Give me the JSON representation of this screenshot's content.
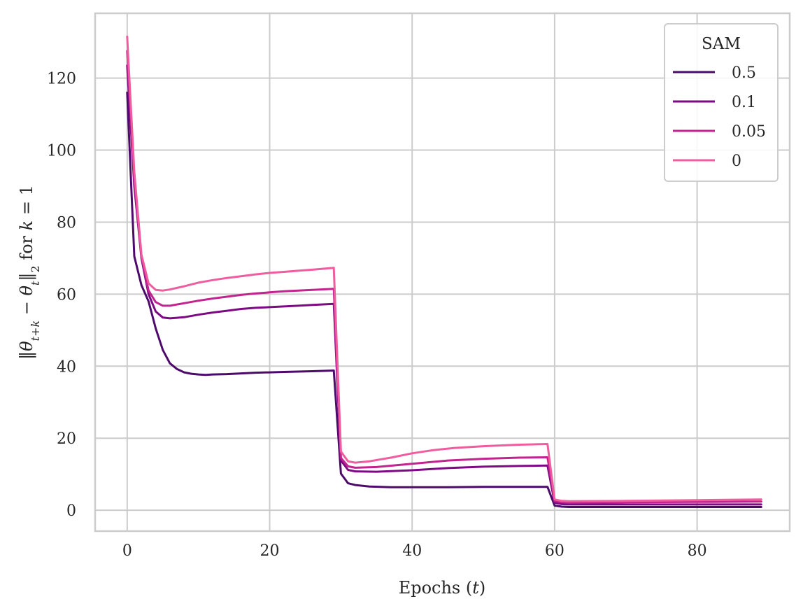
{
  "chart_data": {
    "type": "line",
    "xlabel": "Epochs (t)",
    "ylabel": "‖θt+k − θt‖2 for k = 1",
    "xlim": [
      -4.5,
      93
    ],
    "ylim": [
      -5.8,
      138
    ],
    "x_ticks": [
      0,
      20,
      40,
      60,
      80
    ],
    "y_ticks": [
      0,
      20,
      40,
      60,
      80,
      100,
      120
    ],
    "x_tick_labels": [
      "0",
      "20",
      "40",
      "60",
      "80"
    ],
    "y_tick_labels": [
      "0",
      "20",
      "40",
      "60",
      "80",
      "100",
      "120"
    ],
    "grid": true,
    "legend": {
      "title": "SAM",
      "position": "top-right"
    },
    "series": [
      {
        "name": "0.5",
        "color": "#4d0a6b",
        "points": [
          [
            0,
            116
          ],
          [
            1,
            70.5
          ],
          [
            2,
            62.5
          ],
          [
            3,
            58
          ],
          [
            4,
            50.5
          ],
          [
            5,
            44.5
          ],
          [
            6,
            40.8
          ],
          [
            7,
            39.2
          ],
          [
            8,
            38.3
          ],
          [
            9,
            37.9
          ],
          [
            10,
            37.7
          ],
          [
            11,
            37.6
          ],
          [
            12,
            37.7
          ],
          [
            14,
            37.8
          ],
          [
            16,
            38.0
          ],
          [
            18,
            38.2
          ],
          [
            20,
            38.3
          ],
          [
            22,
            38.4
          ],
          [
            24,
            38.5
          ],
          [
            26,
            38.6
          ],
          [
            29,
            38.8
          ],
          [
            30,
            10.2
          ],
          [
            31,
            7.5
          ],
          [
            32,
            7.0
          ],
          [
            34,
            6.6
          ],
          [
            37,
            6.4
          ],
          [
            40,
            6.4
          ],
          [
            45,
            6.4
          ],
          [
            50,
            6.5
          ],
          [
            55,
            6.5
          ],
          [
            59,
            6.5
          ],
          [
            60,
            1.3
          ],
          [
            61,
            1.0
          ],
          [
            62,
            0.9
          ],
          [
            70,
            0.9
          ],
          [
            80,
            0.9
          ],
          [
            89,
            0.9
          ]
        ]
      },
      {
        "name": "0.1",
        "color": "#7d0a84",
        "points": [
          [
            0,
            123.5
          ],
          [
            1,
            90
          ],
          [
            2,
            70
          ],
          [
            3,
            60
          ],
          [
            4,
            55.2
          ],
          [
            5,
            53.5
          ],
          [
            6,
            53.3
          ],
          [
            8,
            53.6
          ],
          [
            10,
            54.3
          ],
          [
            12,
            54.9
          ],
          [
            14,
            55.4
          ],
          [
            16,
            55.9
          ],
          [
            18,
            56.2
          ],
          [
            20,
            56.4
          ],
          [
            22,
            56.6
          ],
          [
            24,
            56.8
          ],
          [
            26,
            57.0
          ],
          [
            29,
            57.3
          ],
          [
            30,
            13.8
          ],
          [
            31,
            11.2
          ],
          [
            32,
            10.8
          ],
          [
            35,
            10.7
          ],
          [
            40,
            11.1
          ],
          [
            45,
            11.7
          ],
          [
            50,
            12.1
          ],
          [
            55,
            12.3
          ],
          [
            59,
            12.4
          ],
          [
            60,
            2.1
          ],
          [
            61,
            1.7
          ],
          [
            62,
            1.6
          ],
          [
            70,
            1.6
          ],
          [
            80,
            1.6
          ],
          [
            89,
            1.6
          ]
        ]
      },
      {
        "name": "0.05",
        "color": "#c2238e",
        "points": [
          [
            0,
            127.5
          ],
          [
            1,
            92
          ],
          [
            2,
            70.5
          ],
          [
            3,
            61
          ],
          [
            4,
            57.8
          ],
          [
            5,
            56.8
          ],
          [
            6,
            56.8
          ],
          [
            8,
            57.5
          ],
          [
            10,
            58.2
          ],
          [
            12,
            58.8
          ],
          [
            14,
            59.3
          ],
          [
            16,
            59.8
          ],
          [
            18,
            60.2
          ],
          [
            20,
            60.5
          ],
          [
            22,
            60.8
          ],
          [
            24,
            61.0
          ],
          [
            26,
            61.2
          ],
          [
            29,
            61.5
          ],
          [
            30,
            14.5
          ],
          [
            31,
            12.2
          ],
          [
            32,
            11.8
          ],
          [
            35,
            12.0
          ],
          [
            40,
            12.9
          ],
          [
            45,
            13.8
          ],
          [
            50,
            14.3
          ],
          [
            55,
            14.6
          ],
          [
            59,
            14.7
          ],
          [
            60,
            2.6
          ],
          [
            61,
            2.2
          ],
          [
            62,
            2.1
          ],
          [
            70,
            2.2
          ],
          [
            80,
            2.3
          ],
          [
            89,
            2.4
          ]
        ]
      },
      {
        "name": "0",
        "color": "#ef5d9e",
        "points": [
          [
            0,
            131.5
          ],
          [
            1,
            94
          ],
          [
            2,
            71
          ],
          [
            3,
            63
          ],
          [
            4,
            61.2
          ],
          [
            5,
            61.0
          ],
          [
            6,
            61.3
          ],
          [
            8,
            62.2
          ],
          [
            10,
            63.2
          ],
          [
            12,
            63.9
          ],
          [
            14,
            64.5
          ],
          [
            16,
            65.0
          ],
          [
            18,
            65.5
          ],
          [
            20,
            65.9
          ],
          [
            22,
            66.2
          ],
          [
            24,
            66.5
          ],
          [
            26,
            66.8
          ],
          [
            29,
            67.3
          ],
          [
            30,
            16.3
          ],
          [
            31,
            13.6
          ],
          [
            32,
            13.2
          ],
          [
            34,
            13.6
          ],
          [
            37,
            14.6
          ],
          [
            40,
            15.8
          ],
          [
            43,
            16.7
          ],
          [
            46,
            17.3
          ],
          [
            50,
            17.8
          ],
          [
            55,
            18.2
          ],
          [
            59,
            18.4
          ],
          [
            60,
            3.0
          ],
          [
            61,
            2.6
          ],
          [
            62,
            2.5
          ],
          [
            70,
            2.6
          ],
          [
            80,
            2.8
          ],
          [
            89,
            3.0
          ]
        ]
      }
    ]
  }
}
